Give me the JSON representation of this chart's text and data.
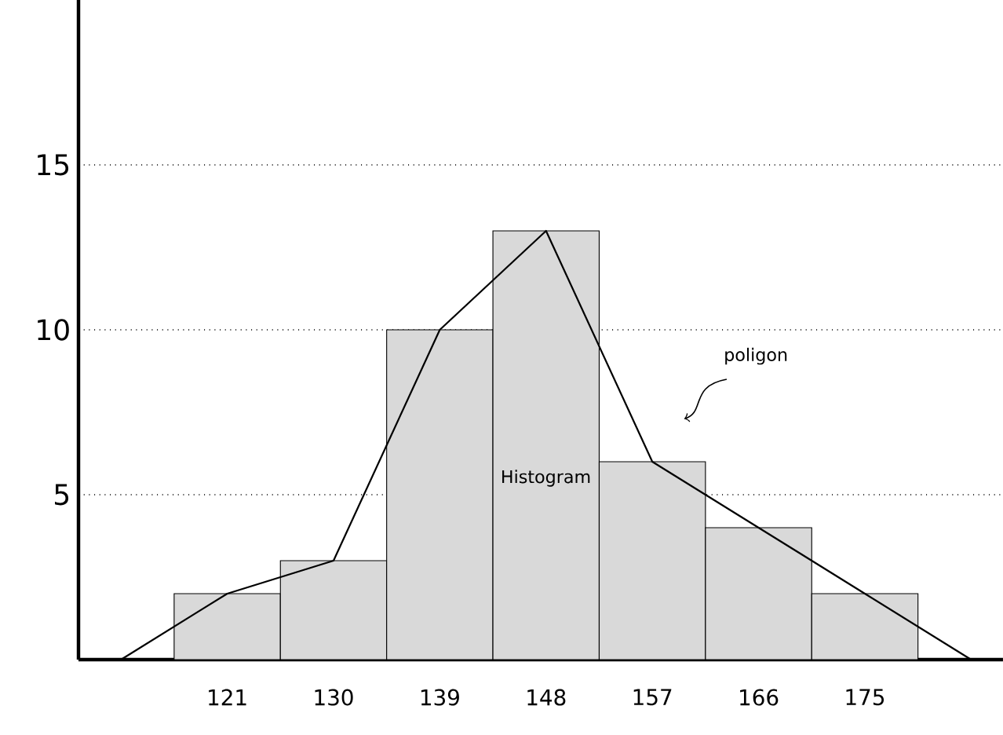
{
  "chart_data": {
    "type": "bar",
    "categories": [
      null,
      "121",
      "130",
      "139",
      "148",
      "157",
      "166",
      "175",
      null
    ],
    "series": [
      {
        "color": "#d9d9d9",
        "values": [
          null,
          2,
          3,
          10,
          13,
          6,
          4,
          2,
          null
        ]
      },
      {
        "type": "line",
        "color": "#000000",
        "values": [
          0,
          2,
          3,
          10,
          13,
          6,
          4,
          2,
          0
        ]
      }
    ],
    "ylim": [
      0,
      20
    ],
    "yticks": [
      5,
      10,
      15
    ],
    "grid": "y",
    "marker": "none",
    "line_style": "solid",
    "annotations": [
      "Histogram",
      "poligon"
    ]
  }
}
